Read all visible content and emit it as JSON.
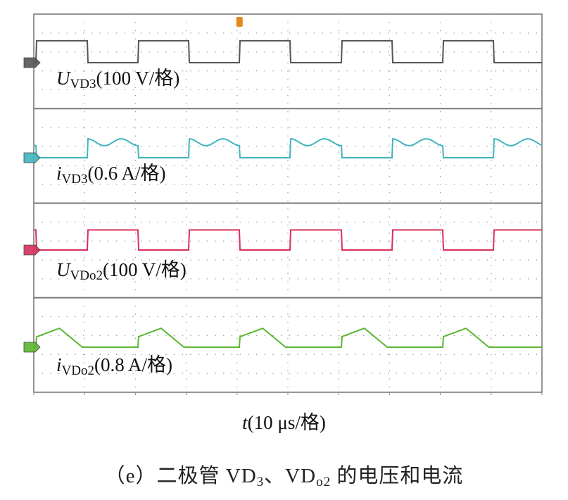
{
  "figure": {
    "caption_prefix": "（e）二极管 VD",
    "caption_sub1": "3",
    "caption_mid": "、VD",
    "caption_sub2": "o2",
    "caption_suffix": " 的电压和电流"
  },
  "chart_data": {
    "type": "line",
    "title": "",
    "x_axis": {
      "symbol": "t",
      "scale": "(10 μs/格)",
      "divisions": 10
    },
    "y_divisions": 20,
    "grid": true,
    "period_divisions": 2,
    "channels": [
      {
        "symbol": "U",
        "subscript": "VD3",
        "scale": "(100 V/格)",
        "color": "#555555",
        "shape": "square",
        "duty_start": 0.0,
        "duty_end": 0.5,
        "high_divs": 0.58,
        "low_divs": 0
      },
      {
        "symbol": "i",
        "subscript": "VD3",
        "scale": "(0.6 A/格)",
        "color": "#3fb5bd",
        "shape": "ripple",
        "duty_start": 0.5,
        "duty_end": 1.0,
        "high_divs": 0.5,
        "low_divs": 0
      },
      {
        "symbol": "U",
        "subscript": "VDo2",
        "scale": "(100 V/格)",
        "color": "#d8305a",
        "shape": "square",
        "duty_start": 0.5,
        "duty_end": 1.0,
        "high_divs": 0.53,
        "low_divs": 0
      },
      {
        "symbol": "i",
        "subscript": "VDo2",
        "scale": "(0.8 A/格)",
        "color": "#5cb632",
        "shape": "triangle",
        "duty_start": 0.0,
        "duty_end": 0.5,
        "high_divs": 0.5,
        "low_divs": 0
      }
    ]
  }
}
